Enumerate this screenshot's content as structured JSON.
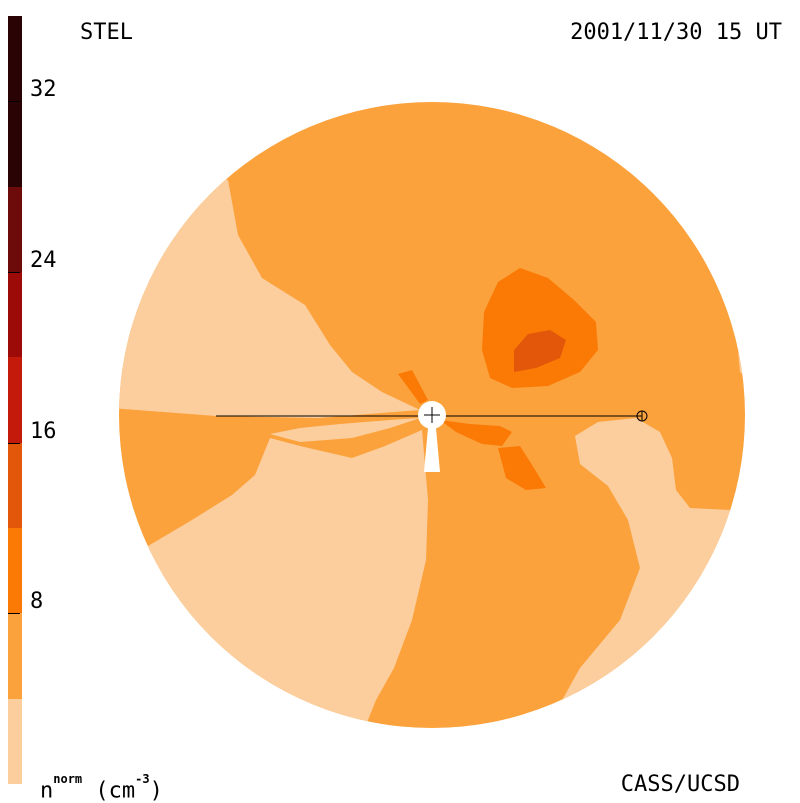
{
  "header": {
    "instrument": "STEL",
    "timestamp": "2001/11/30 15 UT"
  },
  "footer": {
    "unit_prefix": "n",
    "unit_super": "norm",
    "unit_suffix": " (cm",
    "unit_exp": "-3",
    "unit_close": ")",
    "credit": "CASS/UCSD"
  },
  "colorbar": {
    "levels": [
      {
        "from": 0,
        "to": 4,
        "color": "#fcce9e"
      },
      {
        "from": 4,
        "to": 8,
        "color": "#fba23c"
      },
      {
        "from": 8,
        "to": 12,
        "color": "#fb7a06"
      },
      {
        "from": 12,
        "to": 16,
        "color": "#e25709"
      },
      {
        "from": 16,
        "to": 20,
        "color": "#c41a0c"
      },
      {
        "from": 20,
        "to": 24,
        "color": "#9c0b07"
      },
      {
        "from": 24,
        "to": 28,
        "color": "#6d0b0b"
      },
      {
        "from": 28,
        "to": 36,
        "color": "#2a0404"
      }
    ],
    "ticks": [
      {
        "value": 8,
        "label": "8"
      },
      {
        "value": 16,
        "label": "16"
      },
      {
        "value": 24,
        "label": "24"
      },
      {
        "value": 32,
        "label": "32"
      }
    ],
    "min": 0,
    "max": 36
  },
  "map": {
    "background_color": "#fba23c",
    "low_color": "#fcce9e",
    "mid_color": "#fb7a06",
    "high_color": "#e25709",
    "sun_marker": "sun-marker",
    "earth_marker": "earth-marker"
  }
}
